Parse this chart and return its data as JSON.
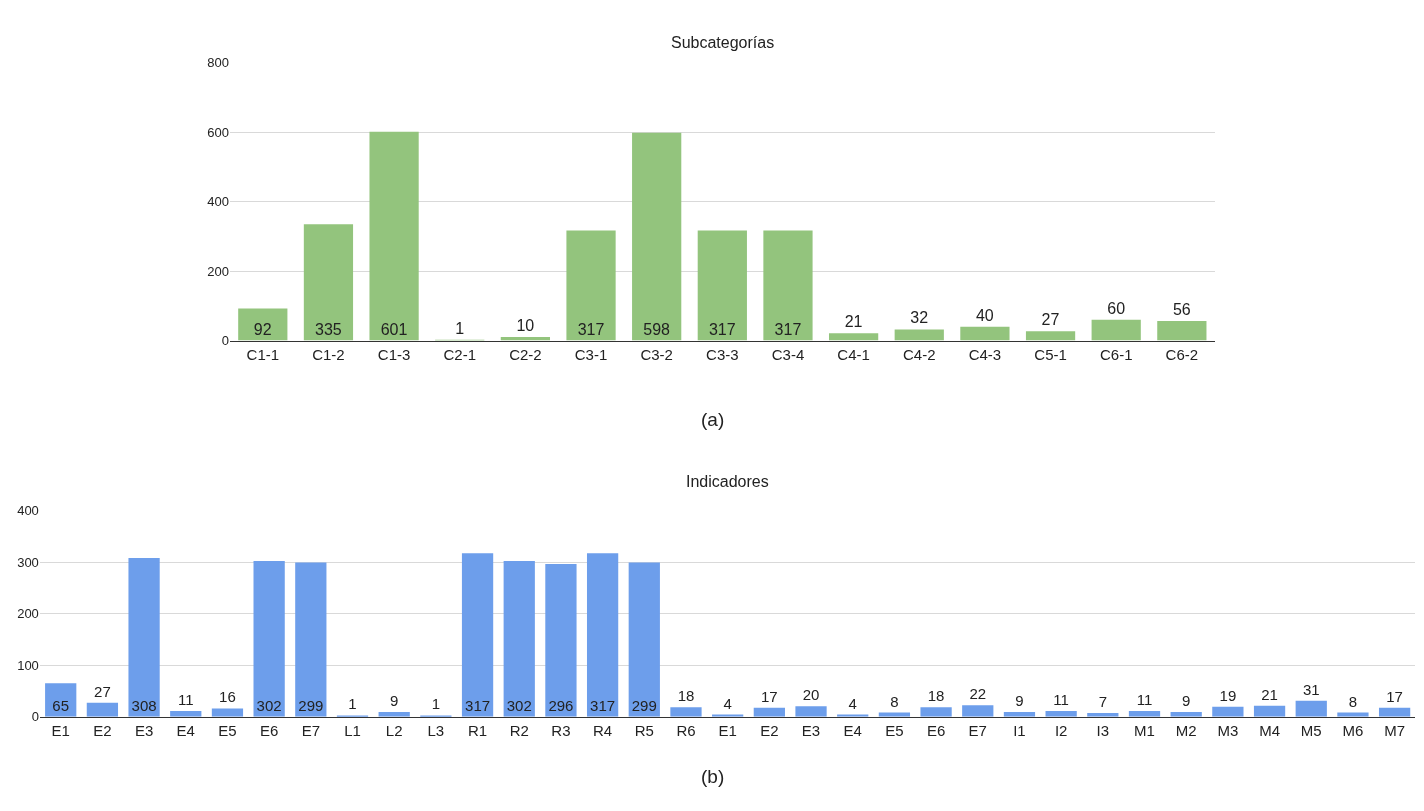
{
  "chart_data": [
    {
      "type": "bar",
      "title": "Subcategorías",
      "categories": [
        "C1-1",
        "C1-2",
        "C1-3",
        "C2-1",
        "C2-2",
        "C3-1",
        "C3-2",
        "C3-3",
        "C3-4",
        "C4-1",
        "C4-2",
        "C4-3",
        "C5-1",
        "C6-1",
        "C6-2"
      ],
      "values": [
        92,
        335,
        601,
        1,
        10,
        317,
        598,
        317,
        317,
        21,
        32,
        40,
        27,
        60,
        56
      ],
      "color": "#93c47d",
      "ylim": [
        0,
        800
      ],
      "yticks": [
        0,
        200,
        400,
        600,
        800
      ],
      "grid": "y",
      "data_labels": true,
      "annotations": [
        "(a)"
      ]
    },
    {
      "type": "bar",
      "title": "Indicadores",
      "categories": [
        "E1",
        "E2",
        "E3",
        "E4",
        "E5",
        "E6",
        "E7",
        "L1",
        "L2",
        "L3",
        "R1",
        "R2",
        "R3",
        "R4",
        "R5",
        "R6",
        "E1",
        "E2",
        "E3",
        "E4",
        "E5",
        "E6",
        "E7",
        "I1",
        "I2",
        "I3",
        "M1",
        "M2",
        "M3",
        "M4",
        "M5",
        "M6",
        "M7"
      ],
      "values": [
        65,
        27,
        308,
        11,
        16,
        302,
        299,
        1,
        9,
        1,
        317,
        302,
        296,
        317,
        299,
        18,
        4,
        17,
        20,
        4,
        8,
        18,
        22,
        9,
        11,
        7,
        11,
        9,
        19,
        21,
        31,
        8,
        17
      ],
      "color": "#6d9eeb",
      "ylim": [
        0,
        400
      ],
      "yticks": [
        0,
        100,
        200,
        300,
        400
      ],
      "grid": "y",
      "data_labels": true,
      "annotations": [
        "(b)"
      ]
    }
  ]
}
